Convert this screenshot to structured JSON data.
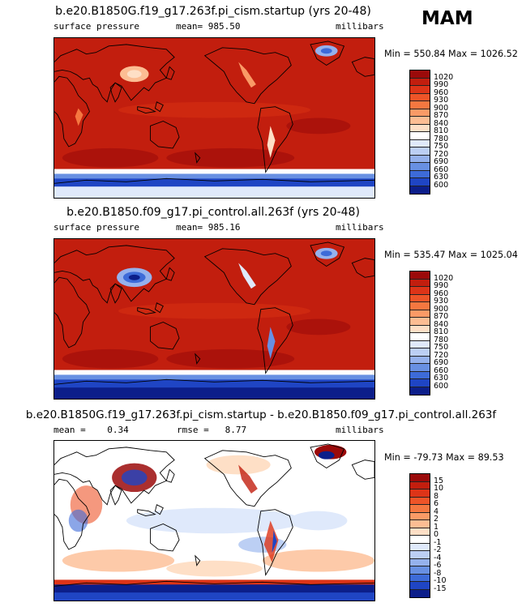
{
  "season": "MAM",
  "chart_data": [
    {
      "type": "heatmap",
      "title": "b.e20.B1850G.f19_g17.263f.pi_cism.startup (yrs 20-48)",
      "variable_label": "surface pressure",
      "stat_label": "mean=",
      "stat_value": "985.50",
      "units": "millibars",
      "min_max": "Min = 550.84 Max = 1026.52",
      "colorbar_levels": [
        "1020",
        "990",
        "960",
        "930",
        "900",
        "870",
        "840",
        "810",
        "780",
        "750",
        "720",
        "690",
        "660",
        "630",
        "600"
      ],
      "colorbar_colors": [
        "#9b0a0a",
        "#c21e0e",
        "#dd3418",
        "#ee5428",
        "#f57740",
        "#fa9a66",
        "#fcbd93",
        "#fedfc6",
        "#ffffff",
        "#dfe9fb",
        "#bccff4",
        "#95b1ec",
        "#6890e2",
        "#3d6bd8",
        "#1f45c4",
        "#0c1e8a"
      ]
    },
    {
      "type": "heatmap",
      "title": "b.e20.B1850.f09_g17.pi_control.all.263f (yrs 20-48)",
      "variable_label": "surface pressure",
      "stat_label": "mean=",
      "stat_value": "985.16",
      "units": "millibars",
      "min_max": "Min = 535.47 Max = 1025.04",
      "colorbar_levels": [
        "1020",
        "990",
        "960",
        "930",
        "900",
        "870",
        "840",
        "810",
        "780",
        "750",
        "720",
        "690",
        "660",
        "630",
        "600"
      ],
      "colorbar_colors": [
        "#9b0a0a",
        "#c21e0e",
        "#dd3418",
        "#ee5428",
        "#f57740",
        "#fa9a66",
        "#fcbd93",
        "#fedfc6",
        "#ffffff",
        "#dfe9fb",
        "#bccff4",
        "#95b1ec",
        "#6890e2",
        "#3d6bd8",
        "#1f45c4",
        "#0c1e8a"
      ]
    },
    {
      "type": "heatmap",
      "title": "b.e20.B1850G.f19_g17.263f.pi_cism.startup - b.e20.B1850.f09_g17.pi_control.all.263f",
      "mean_label": "mean =",
      "mean_value": "0.34",
      "rmse_label": "rmse =",
      "rmse_value": "8.77",
      "units": "millibars",
      "min_max": "Min = -79.73 Max =  89.53",
      "colorbar_levels": [
        "15",
        "10",
        "8",
        "6",
        "4",
        "2",
        "1",
        "0",
        "-1",
        "-2",
        "-4",
        "-6",
        "-8",
        "-10",
        "-15"
      ],
      "colorbar_colors": [
        "#9b0a0a",
        "#c21e0e",
        "#dd3418",
        "#ee5428",
        "#f57740",
        "#fa9a66",
        "#fcbd93",
        "#fedfc6",
        "#ffffff",
        "#dfe9fb",
        "#bccff4",
        "#95b1ec",
        "#6890e2",
        "#3d6bd8",
        "#1f45c4",
        "#0c1e8a"
      ]
    }
  ]
}
